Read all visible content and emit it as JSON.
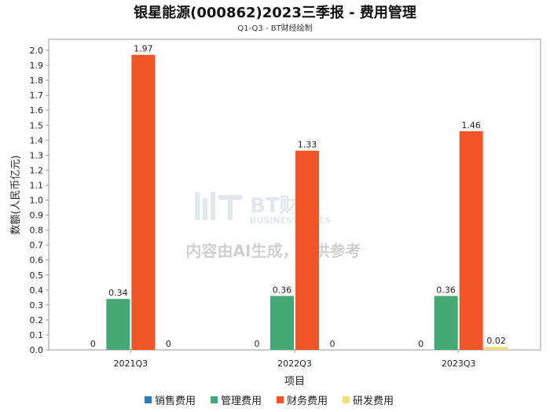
{
  "header": {
    "title": "银星能源(000862)2023三季报 - 费用管理",
    "subtitle": "Q1-Q3 - BT财经绘制"
  },
  "watermark": {
    "brand_cn": "BT财经",
    "brand_en": "BUSINESS TIMES",
    "notice": "内容由AI生成，仅供参考"
  },
  "chart_data": {
    "type": "bar",
    "categories": [
      "2021Q3",
      "2022Q3",
      "2023Q3"
    ],
    "series": [
      {
        "name": "销售费用",
        "color": "#2E7BB4",
        "values": [
          0,
          0,
          0
        ]
      },
      {
        "name": "管理费用",
        "color": "#45A874",
        "values": [
          0.34,
          0.36,
          0.36
        ]
      },
      {
        "name": "财务费用",
        "color": "#F05528",
        "values": [
          1.97,
          1.33,
          1.46
        ]
      },
      {
        "name": "研发费用",
        "color": "#EEDD82",
        "values": [
          0,
          0,
          0.02
        ]
      }
    ],
    "data_labels": [
      [
        "0",
        "0",
        "0"
      ],
      [
        "0.34",
        "0.36",
        "0.36"
      ],
      [
        "1.97",
        "1.33",
        "1.46"
      ],
      [
        "0",
        "0",
        "0.02"
      ]
    ],
    "xlabel": "项目",
    "ylabel": "数额(人民币亿元)",
    "ylim": [
      0,
      2.0
    ],
    "yticks": [
      "0.0",
      "0.1",
      "0.2",
      "0.3",
      "0.4",
      "0.5",
      "0.6",
      "0.7",
      "0.8",
      "0.9",
      "1.0",
      "1.1",
      "1.2",
      "1.3",
      "1.4",
      "1.5",
      "1.6",
      "1.7",
      "1.8",
      "1.9",
      "2.0"
    ],
    "grid": false,
    "legend_position": "bottom"
  }
}
